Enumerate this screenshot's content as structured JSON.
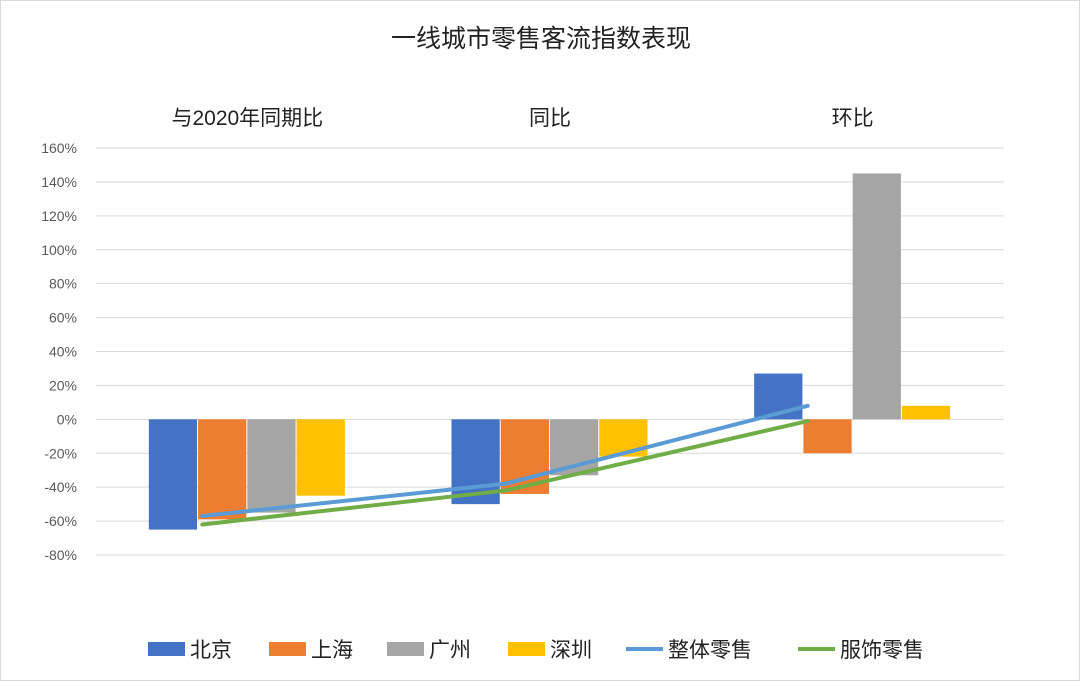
{
  "chart_data": {
    "type": "bar",
    "title": "一线城市零售客流指数表现",
    "categories": [
      "与2020年同期比",
      "同比",
      "环比"
    ],
    "y_ticks": [
      "-80%",
      "-60%",
      "-40%",
      "-20%",
      "0%",
      "20%",
      "40%",
      "60%",
      "80%",
      "100%",
      "120%",
      "140%",
      "160%"
    ],
    "ylim": [
      -80,
      160
    ],
    "y_unit": "%",
    "grid": true,
    "legend_position": "bottom",
    "category_labels_position": "top",
    "series": [
      {
        "name": "北京",
        "kind": "bar",
        "color": "#4472C4",
        "values": [
          -65,
          -50,
          27
        ]
      },
      {
        "name": "上海",
        "kind": "bar",
        "color": "#ED7D31",
        "values": [
          -59,
          -44,
          -20
        ]
      },
      {
        "name": "广州",
        "kind": "bar",
        "color": "#A5A5A5",
        "values": [
          -55,
          -33,
          145
        ]
      },
      {
        "name": "深圳",
        "kind": "bar",
        "color": "#FFC000",
        "values": [
          -45,
          -22,
          8
        ]
      },
      {
        "name": "整体零售",
        "kind": "line",
        "color": "#5B9BD5",
        "values": [
          -57,
          -38,
          8
        ]
      },
      {
        "name": "服饰零售",
        "kind": "line",
        "color": "#70AD47",
        "values": [
          -62,
          -42,
          -1
        ]
      }
    ]
  }
}
